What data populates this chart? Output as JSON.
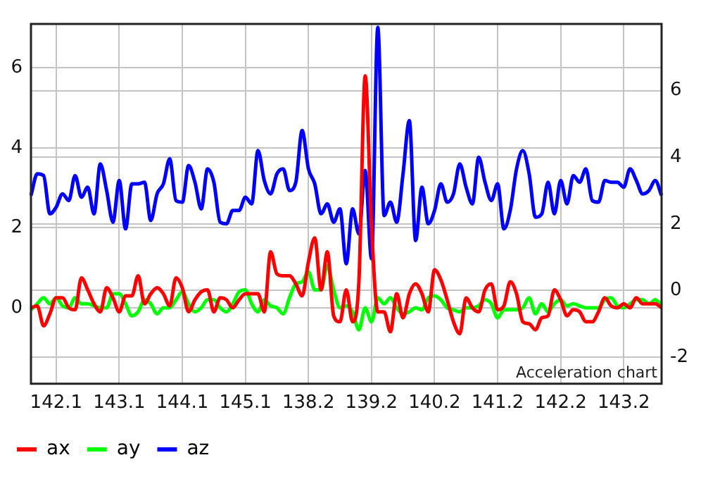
{
  "chart_data": {
    "type": "line",
    "categories": [
      null,
      null,
      null,
      null,
      "142.1",
      null,
      null,
      null,
      null,
      null,
      null,
      null,
      null,
      null,
      "143.1",
      null,
      null,
      null,
      null,
      null,
      null,
      null,
      null,
      null,
      "144.1",
      null,
      null,
      null,
      null,
      null,
      null,
      null,
      null,
      null,
      "145.1",
      null,
      null,
      null,
      null,
      null,
      null,
      null,
      null,
      null,
      "138.2",
      null,
      null,
      null,
      null,
      null,
      null,
      null,
      null,
      null,
      "139.2",
      null,
      null,
      null,
      null,
      null,
      null,
      null,
      null,
      null,
      "140.2",
      null,
      null,
      null,
      null,
      null,
      null,
      null,
      null,
      null,
      "141.2",
      null,
      null,
      null,
      null,
      null,
      null,
      null,
      null,
      null,
      "142.2",
      null,
      null,
      null,
      null,
      null,
      null,
      null,
      null,
      null,
      "143.2",
      null,
      null,
      null,
      null,
      null,
      null
    ],
    "series": [
      {
        "name": "ax",
        "color": "#ff0000",
        "values": [
          0,
          0.05,
          -0.45,
          -0.15,
          0.25,
          0.25,
          0,
          -0.05,
          0.75,
          0.45,
          0.1,
          -0.1,
          0.5,
          0.25,
          -0.1,
          0.3,
          0.3,
          0.8,
          0.1,
          0.35,
          0.5,
          0.35,
          0.05,
          0.75,
          0.5,
          -0.1,
          0.2,
          0.4,
          0.45,
          -0.1,
          0.25,
          0.2,
          0,
          0.2,
          0.35,
          0.35,
          0.35,
          -0.1,
          1.4,
          0.85,
          0.8,
          0.8,
          0.6,
          0.3,
          1.15,
          1.75,
          0.45,
          1.4,
          -0.2,
          -0.35,
          0.45,
          -0.35,
          0.65,
          5.8,
          2.05,
          -0.1,
          -0.1,
          -0.6,
          0.35,
          -0.25,
          0.35,
          0.6,
          0.35,
          -0.1,
          0.95,
          0.7,
          0.2,
          -0.35,
          -0.65,
          0.25,
          0,
          -0.1,
          0.45,
          0.6,
          -0.05,
          0.05,
          0.65,
          0.35,
          -0.35,
          -0.4,
          -0.55,
          -0.25,
          -0.2,
          0.45,
          0.2,
          -0.2,
          -0.05,
          -0.1,
          -0.35,
          -0.35,
          -0.1,
          0.25,
          0.05,
          0,
          0.1,
          0,
          0.25,
          0.1,
          0.1,
          0.1,
          0
        ]
      },
      {
        "name": "ay",
        "color": "#00ff00",
        "values": [
          -0.05,
          0.1,
          0.25,
          0.1,
          0.25,
          0.05,
          0,
          0.25,
          0.1,
          0.1,
          0.05,
          0,
          0,
          0.35,
          0.35,
          0.1,
          -0.2,
          -0.1,
          0.2,
          0.1,
          -0.15,
          0,
          0,
          0.2,
          0.4,
          0.1,
          -0.1,
          0,
          0.2,
          0.2,
          0,
          -0.1,
          0.1,
          0.4,
          0.45,
          0.1,
          -0.1,
          0.2,
          0.05,
          0,
          -0.15,
          0.25,
          0.6,
          0.65,
          0.9,
          0.45,
          0.45,
          1.05,
          0.45,
          0,
          0.05,
          -0.1,
          -0.55,
          0,
          -0.35,
          0.25,
          0.1,
          0.25,
          0,
          -0.15,
          -0.1,
          0,
          -0.05,
          0.25,
          0.3,
          0.2,
          0,
          -0.05,
          -0.1,
          0,
          0,
          0.05,
          0.2,
          0.1,
          -0.25,
          -0.05,
          -0.05,
          -0.05,
          0,
          0.25,
          -0.15,
          0.1,
          -0.1,
          0.1,
          0.2,
          0.05,
          0.1,
          0.05,
          0,
          0,
          0,
          0.2,
          0.25,
          0.05,
          0,
          0.1,
          0.2,
          0.2,
          0.1,
          0.2,
          0.05
        ]
      },
      {
        "name": "az",
        "color": "#0000ff",
        "axis": "y2",
        "values": [
          2.85,
          3.5,
          3.45,
          2.3,
          2.5,
          2.9,
          2.7,
          3.45,
          2.8,
          3.1,
          2.3,
          3.8,
          3.0,
          2.05,
          3.3,
          1.85,
          3.2,
          3.2,
          3.25,
          2.1,
          2.9,
          3.2,
          3.95,
          2.7,
          2.65,
          3.75,
          3.25,
          2.45,
          3.65,
          3.25,
          2.05,
          2.0,
          2.4,
          2.4,
          2.8,
          2.6,
          4.2,
          3.3,
          2.9,
          3.5,
          3.65,
          3.0,
          3.25,
          4.8,
          3.65,
          3.2,
          2.3,
          2.6,
          2.05,
          2.45,
          0.8,
          2.45,
          1.7,
          3.6,
          0.95,
          7.9,
          2.25,
          2.65,
          2.05,
          3.5,
          5.1,
          1.5,
          3.1,
          2.0,
          2.4,
          3.2,
          2.65,
          2.9,
          3.8,
          3.1,
          2.6,
          4.0,
          3.25,
          2.7,
          3.2,
          1.85,
          2.4,
          3.65,
          4.2,
          3.5,
          2.2,
          2.3,
          3.25,
          2.3,
          3.3,
          2.6,
          3.45,
          3.25,
          3.65,
          2.7,
          2.65,
          3.3,
          3.25,
          3.25,
          3.1,
          3.65,
          3.3,
          2.9,
          3.0,
          3.3,
          2.85
        ]
      }
    ],
    "ylim": [
      -1.9,
      7.1
    ],
    "yticks": [
      0,
      2,
      4,
      6
    ],
    "y2lim": [
      -2.8,
      8
    ],
    "y2ticks": [
      -2,
      0,
      2,
      4,
      6
    ],
    "grid": true,
    "legend": "bottom left",
    "marker": "none",
    "line_style": "solid",
    "annotations": [
      "Acceleration chart"
    ]
  }
}
